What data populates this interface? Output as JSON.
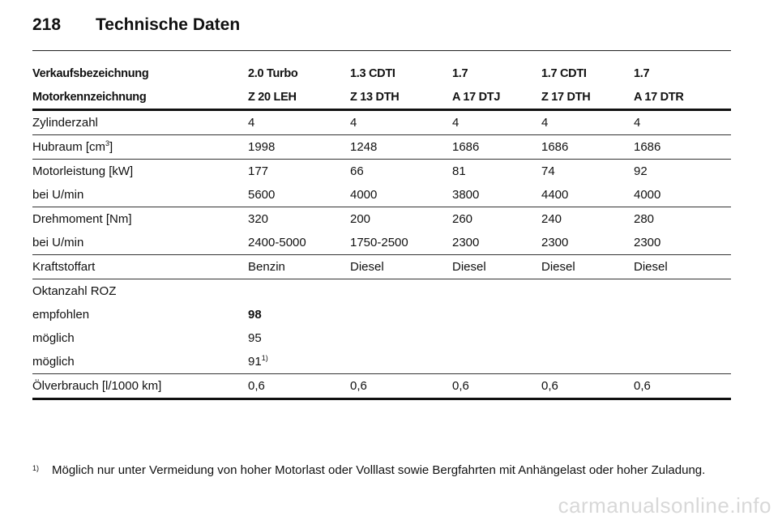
{
  "header": {
    "page_number": "218",
    "title": "Technische Daten"
  },
  "table": {
    "header_rows": [
      [
        "Verkaufsbezeichnung",
        "2.0 Turbo",
        "1.3 CDTI",
        "1.7",
        "1.7 CDTI",
        "1.7"
      ],
      [
        "Motorkennzeichnung",
        "Z 20 LEH",
        "Z 13 DTH",
        "A 17 DTJ",
        "Z 17 DTH",
        "A 17 DTR"
      ]
    ],
    "zylinder": [
      "Zylinderzahl",
      "4",
      "4",
      "4",
      "4",
      "4"
    ],
    "hubraum": {
      "label": "Hubraum [cm",
      "sup": "3",
      "label_end": "]",
      "values": [
        "1998",
        "1248",
        "1686",
        "1686",
        "1686"
      ]
    },
    "leistung": [
      [
        "Motorleistung [kW]",
        "177",
        "66",
        "81",
        "74",
        "92"
      ],
      [
        "bei U/min",
        "5600",
        "4000",
        "3800",
        "4400",
        "4000"
      ]
    ],
    "drehmoment": [
      [
        "Drehmoment [Nm]",
        "320",
        "200",
        "260",
        "240",
        "280"
      ],
      [
        "bei U/min",
        "2400-5000",
        "1750-2500",
        "2300",
        "2300",
        "2300"
      ]
    ],
    "kraftstoff": [
      "Kraftstoffart",
      "Benzin",
      "Diesel",
      "Diesel",
      "Diesel",
      "Diesel"
    ],
    "oktan": {
      "title": "Oktanzahl ROZ",
      "empfohlen_label": "empfohlen",
      "empfohlen_value": "98",
      "moeglich1_label": "möglich",
      "moeglich1_value": "95",
      "moeglich2_label": "möglich",
      "moeglich2_value": "91",
      "moeglich2_sup": "1)"
    },
    "oelverbrauch": [
      "Ölverbrauch [l/1000 km]",
      "0,6",
      "0,6",
      "0,6",
      "0,6",
      "0,6"
    ]
  },
  "footnote": {
    "mark": "1)",
    "text": "Möglich nur unter Vermeidung von hoher Motorlast oder Volllast sowie Bergfahrten mit Anhängelast oder hoher Zuladung."
  },
  "watermark": "carmanualsonline.info"
}
